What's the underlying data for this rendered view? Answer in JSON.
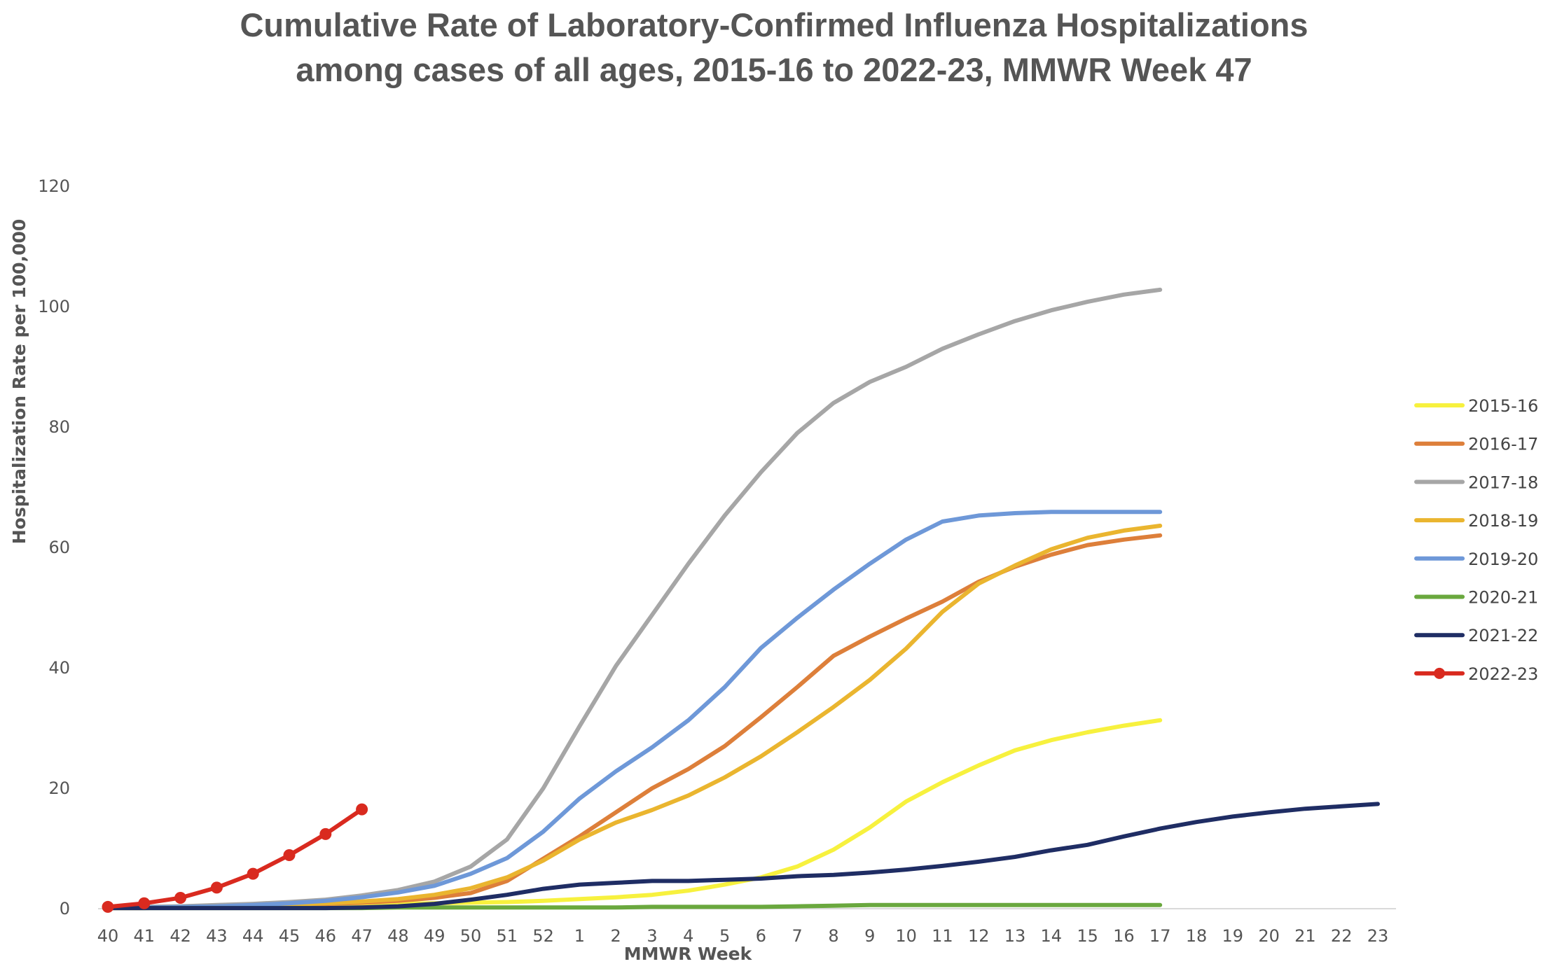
{
  "chart_data": {
    "type": "line",
    "title_line1": "Cumulative Rate of Laboratory-Confirmed Influenza Hospitalizations",
    "title_line2": "among cases of all ages, 2015-16 to 2022-23, MMWR Week 47",
    "xlabel": "MMWR Week",
    "ylabel": "Hospitalization Rate per 100,000",
    "ylim": [
      0,
      120
    ],
    "yticks": [
      0,
      20,
      40,
      60,
      80,
      100,
      120
    ],
    "categories": [
      "40",
      "41",
      "42",
      "43",
      "44",
      "45",
      "46",
      "47",
      "48",
      "49",
      "50",
      "51",
      "52",
      "1",
      "2",
      "3",
      "4",
      "5",
      "6",
      "7",
      "8",
      "9",
      "10",
      "11",
      "12",
      "13",
      "14",
      "15",
      "16",
      "17",
      "18",
      "19",
      "20",
      "21",
      "22",
      "23"
    ],
    "grid": false,
    "legend_position": "right",
    "series": [
      {
        "name": "2015-16",
        "color": "#f7f13e",
        "markers": false,
        "values": [
          0.1,
          0.2,
          0.3,
          0.3,
          0.4,
          0.5,
          0.6,
          0.7,
          0.8,
          0.9,
          1.0,
          1.1,
          1.3,
          1.6,
          1.9,
          2.3,
          3.0,
          4.0,
          5.2,
          7.0,
          9.8,
          13.5,
          17.8,
          21.0,
          23.8,
          26.3,
          28.0,
          29.3,
          30.4,
          31.3,
          null,
          null,
          null,
          null,
          null,
          null
        ]
      },
      {
        "name": "2016-17",
        "color": "#dd7f3a",
        "markers": false,
        "values": [
          0.1,
          0.1,
          0.2,
          0.3,
          0.4,
          0.6,
          0.8,
          1.0,
          1.3,
          1.8,
          2.6,
          4.6,
          8.3,
          12.0,
          16.0,
          20.0,
          23.2,
          27.0,
          31.8,
          36.8,
          42.0,
          45.2,
          48.2,
          51.0,
          54.3,
          56.8,
          58.8,
          60.4,
          61.3,
          62.0,
          null,
          null,
          null,
          null,
          null,
          null
        ]
      },
      {
        "name": "2017-18",
        "color": "#a6a6a6",
        "markers": false,
        "values": [
          0.2,
          0.3,
          0.4,
          0.6,
          0.8,
          1.1,
          1.5,
          2.2,
          3.1,
          4.5,
          7.0,
          11.5,
          20.0,
          30.3,
          40.3,
          48.8,
          57.3,
          65.3,
          72.5,
          79.0,
          84.0,
          87.5,
          90.0,
          93.0,
          95.4,
          97.6,
          99.4,
          100.8,
          102.0,
          102.8,
          null,
          null,
          null,
          null,
          null,
          null
        ]
      },
      {
        "name": "2018-19",
        "color": "#eab52f",
        "markers": false,
        "values": [
          0.1,
          0.2,
          0.3,
          0.4,
          0.5,
          0.7,
          0.9,
          1.2,
          1.6,
          2.3,
          3.4,
          5.2,
          8.0,
          11.5,
          14.3,
          16.4,
          18.8,
          21.8,
          25.3,
          29.3,
          33.5,
          38.0,
          43.2,
          49.3,
          54.0,
          57.0,
          59.7,
          61.6,
          62.8,
          63.6,
          null,
          null,
          null,
          null,
          null,
          null
        ]
      },
      {
        "name": "2019-20",
        "color": "#6e98d8",
        "markers": false,
        "values": [
          0.1,
          0.2,
          0.3,
          0.4,
          0.6,
          0.9,
          1.3,
          1.9,
          2.7,
          3.8,
          5.8,
          8.4,
          12.8,
          18.3,
          22.8,
          26.8,
          31.3,
          36.8,
          43.3,
          48.3,
          53.0,
          57.3,
          61.3,
          64.3,
          65.3,
          65.7,
          65.9,
          65.9,
          65.9,
          65.9,
          null,
          null,
          null,
          null,
          null,
          null
        ]
      },
      {
        "name": "2020-21",
        "color": "#6aa83e",
        "markers": false,
        "values": [
          0.1,
          0.1,
          0.1,
          0.1,
          0.1,
          0.1,
          0.1,
          0.1,
          0.2,
          0.2,
          0.2,
          0.2,
          0.2,
          0.2,
          0.2,
          0.3,
          0.3,
          0.3,
          0.3,
          0.4,
          0.5,
          0.6,
          0.6,
          0.6,
          0.6,
          0.6,
          0.6,
          0.6,
          0.6,
          0.6,
          null,
          null,
          null,
          null,
          null,
          null
        ]
      },
      {
        "name": "2021-22",
        "color": "#1f2d64",
        "markers": false,
        "values": [
          0.1,
          0.1,
          0.1,
          0.1,
          0.1,
          0.1,
          0.1,
          0.2,
          0.4,
          0.8,
          1.5,
          2.3,
          3.3,
          4.0,
          4.3,
          4.6,
          4.6,
          4.8,
          5.0,
          5.4,
          5.6,
          6.0,
          6.5,
          7.1,
          7.8,
          8.6,
          9.7,
          10.6,
          12.0,
          13.3,
          14.4,
          15.3,
          16.0,
          16.6,
          17.0,
          17.4
        ]
      },
      {
        "name": "2022-23",
        "color": "#d92a1f",
        "markers": true,
        "values": [
          0.3,
          0.9,
          1.8,
          3.5,
          5.8,
          8.9,
          12.4,
          16.5,
          null,
          null,
          null,
          null,
          null,
          null,
          null,
          null,
          null,
          null,
          null,
          null,
          null,
          null,
          null,
          null,
          null,
          null,
          null,
          null,
          null,
          null,
          null,
          null,
          null,
          null,
          null,
          null
        ]
      }
    ]
  }
}
